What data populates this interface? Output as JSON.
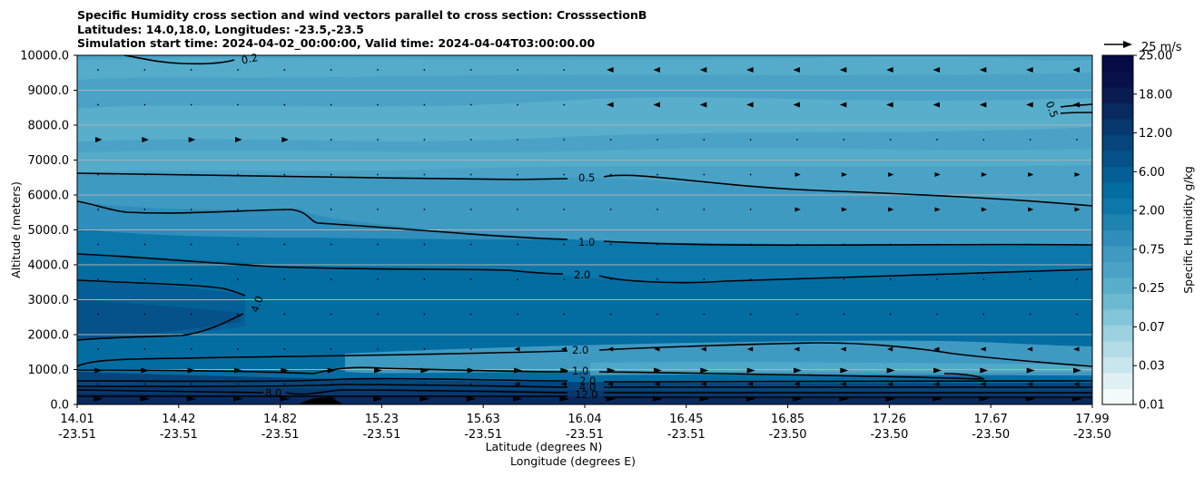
{
  "chart_data": {
    "type": "contourf",
    "title_lines": [
      "Specific Humidity cross section and wind vectors parallel to cross section: CrosssectionB",
      "Latitudes: 14.0,18.0, Longitudes: -23.5,-23.5",
      "Simulation start time: 2024-04-02_00:00:00, Valid time: 2024-04-04T03:00:00.00"
    ],
    "xlabel_lat": "Latitude (degrees N)",
    "xlabel_lon": "Longitude (degrees E)",
    "ylabel": "Altitude (meters)",
    "ylim": [
      0,
      10000
    ],
    "yticks": [
      {
        "value": 0,
        "label": "0.0"
      },
      {
        "value": 1000,
        "label": "1000.0"
      },
      {
        "value": 2000,
        "label": "2000.0"
      },
      {
        "value": 3000,
        "label": "3000.0"
      },
      {
        "value": 4000,
        "label": "4000.0"
      },
      {
        "value": 5000,
        "label": "5000.0"
      },
      {
        "value": 6000,
        "label": "6000.0"
      },
      {
        "value": 7000,
        "label": "7000.0"
      },
      {
        "value": 8000,
        "label": "8000.0"
      },
      {
        "value": 9000,
        "label": "9000.0"
      },
      {
        "value": 10000,
        "label": "10000.0"
      }
    ],
    "xticks": [
      {
        "lat": "14.01",
        "lon": "-23.51"
      },
      {
        "lat": "14.42",
        "lon": "-23.51"
      },
      {
        "lat": "14.82",
        "lon": "-23.51"
      },
      {
        "lat": "15.23",
        "lon": "-23.51"
      },
      {
        "lat": "15.63",
        "lon": "-23.51"
      },
      {
        "lat": "16.04",
        "lon": "-23.51"
      },
      {
        "lat": "16.45",
        "lon": "-23.51"
      },
      {
        "lat": "16.85",
        "lon": "-23.50"
      },
      {
        "lat": "17.26",
        "lon": "-23.50"
      },
      {
        "lat": "17.67",
        "lon": "-23.50"
      },
      {
        "lat": "17.99",
        "lon": "-23.50"
      }
    ],
    "colorbar": {
      "label": "Specific Humidity g/kg",
      "ticks": [
        "0.01",
        "0.03",
        "0.07",
        "0.25",
        "0.75",
        "2.00",
        "6.00",
        "12.00",
        "18.00",
        "25.00"
      ],
      "colors": [
        "#f2fafc",
        "#e0f0f4",
        "#c9e6ee",
        "#b3dce7",
        "#9bd1e0",
        "#84c6d9",
        "#6cbad1",
        "#58aecb",
        "#4aa3c6",
        "#3f9ac2",
        "#2f8ebb",
        "#1f83b2",
        "#0c77aa",
        "#036da1",
        "#035f96",
        "#045289",
        "#05457c",
        "#07386e",
        "#082a60",
        "#081c52",
        "#07104a",
        "#050b45"
      ]
    },
    "quiver_key": "25 m/s",
    "grid": "horizontal",
    "contour_labels": [
      "0.2",
      "0.5",
      "0.5",
      "1.0",
      "2.0",
      "4.0",
      "2.0",
      "1.0",
      "2.0",
      "4.0",
      "8.0",
      "12.0"
    ]
  }
}
